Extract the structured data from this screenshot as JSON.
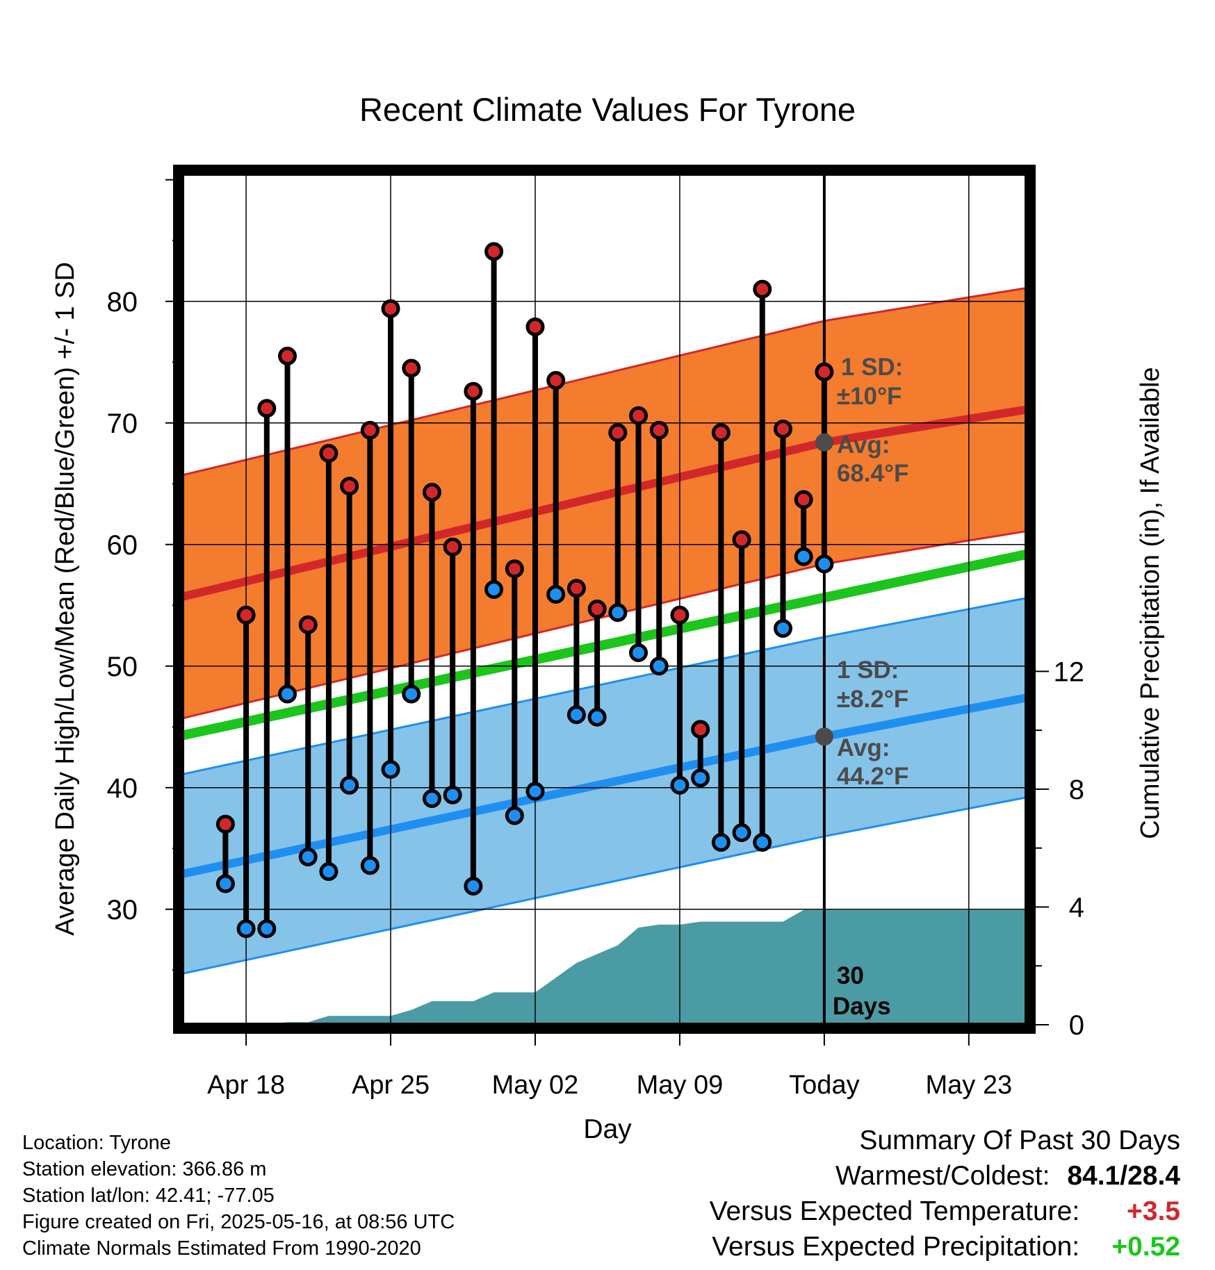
{
  "chart_data": {
    "type": "line",
    "title": "Recent Climate Values For Tyrone",
    "xlabel": "Day",
    "ylabel_left": "Average Daily High/Low/Mean (Red/Blue/Green) +/- 1 SD",
    "ylabel_right": "Cumulative Precipitation (in), If Available",
    "x_tick_labels": [
      "Apr 18",
      "Apr 25",
      "May 02",
      "May 09",
      "Today",
      "May 23"
    ],
    "x_tick_days": [
      2,
      9,
      16,
      23,
      30,
      37
    ],
    "xlim": [
      -1.1,
      39.8
    ],
    "ylim_left": [
      20.5,
      90.5
    ],
    "y_ticks_left": [
      30,
      40,
      50,
      60,
      70,
      80
    ],
    "ylim_right": [
      0,
      28.9
    ],
    "y_ticks_right": [
      0,
      4,
      8,
      12
    ],
    "today_day": 30,
    "today_label": [
      "30",
      "Days"
    ],
    "daily_high": [
      37.0,
      54.2,
      71.2,
      75.5,
      53.4,
      67.5,
      64.8,
      69.4,
      79.4,
      74.5,
      64.3,
      59.8,
      72.6,
      84.1,
      58.0,
      77.9,
      73.5,
      56.4,
      54.7,
      69.2,
      70.6,
      69.4,
      54.2,
      44.8,
      69.2,
      60.4,
      81.0,
      69.5,
      63.7,
      74.2
    ],
    "daily_low": [
      32.1,
      28.4,
      28.4,
      47.7,
      34.3,
      33.1,
      40.2,
      33.6,
      41.5,
      47.7,
      39.1,
      39.4,
      31.9,
      56.3,
      37.7,
      39.7,
      55.9,
      46.0,
      45.8,
      54.4,
      51.1,
      50.0,
      40.2,
      40.8,
      35.5,
      36.3,
      35.5,
      53.1,
      59.0,
      58.4
    ],
    "normal_high": {
      "start": 55.7,
      "today": 68.4,
      "end": 71.1,
      "sd": 10
    },
    "normal_low": {
      "start": 32.9,
      "today": 44.2,
      "end": 47.4,
      "sd": 8.2
    },
    "normal_mean": {
      "start": 44.3,
      "end": 59.2
    },
    "cumulative_precip_days": [
      3,
      4,
      5,
      6,
      9,
      10,
      11,
      12,
      13,
      14,
      15,
      16,
      17,
      18,
      19,
      20,
      21,
      22,
      23,
      24,
      25,
      26,
      27,
      28,
      29,
      30,
      31,
      32,
      33,
      34,
      35,
      36,
      37,
      38,
      39,
      39.8
    ],
    "cumulative_precip": [
      0.02,
      0.09,
      0.09,
      0.3,
      0.3,
      0.5,
      0.8,
      0.8,
      0.8,
      1.1,
      1.1,
      1.1,
      1.6,
      2.1,
      2.4,
      2.7,
      3.3,
      3.4,
      3.4,
      3.5,
      3.5,
      3.5,
      3.5,
      3.5,
      3.9,
      3.9,
      3.9,
      3.9,
      3.9,
      3.9,
      3.9,
      3.9,
      3.9,
      3.9,
      3.9,
      3.9
    ],
    "annotations": {
      "high_sd_label": "1 SD:",
      "high_sd_value": "±10°F",
      "high_avg_label": "Avg:",
      "high_avg_value": "68.4°F",
      "low_sd_label": "1 SD:",
      "low_sd_value": "±8.2°F",
      "low_avg_label": "Avg:",
      "low_avg_value": "44.2°F"
    }
  },
  "colors": {
    "high_band": "#f47c2e",
    "high_line": "#d2272a",
    "low_band": "#86c3e9",
    "low_line": "#1e8ff0",
    "mean_line": "#1cc51c",
    "precip": "#4a9ba4",
    "high_dot": "#d2272a",
    "low_dot": "#1e8ff0",
    "annotation": "#4b4b4b",
    "positive_temp": "#d2272a",
    "positive_precip": "#1cc51c"
  },
  "info": {
    "location": "Location: Tyrone",
    "elevation": "Station elevation: 366.86 m",
    "latlon": "Station lat/lon: 42.41; -77.05",
    "created": "Figure created on Fri, 2025-05-16, at 08:56 UTC",
    "normals": "Climate Normals Estimated From 1990-2020"
  },
  "summary": {
    "title": "Summary Of Past 30 Days",
    "warmest_coldest_label": "Warmest/Coldest:",
    "warmest_coldest_value": "84.1/28.4",
    "temp_label": "Versus Expected Temperature:",
    "temp_value": "+3.5",
    "precip_label": "Versus Expected Precipitation:",
    "precip_value": "+0.52"
  }
}
